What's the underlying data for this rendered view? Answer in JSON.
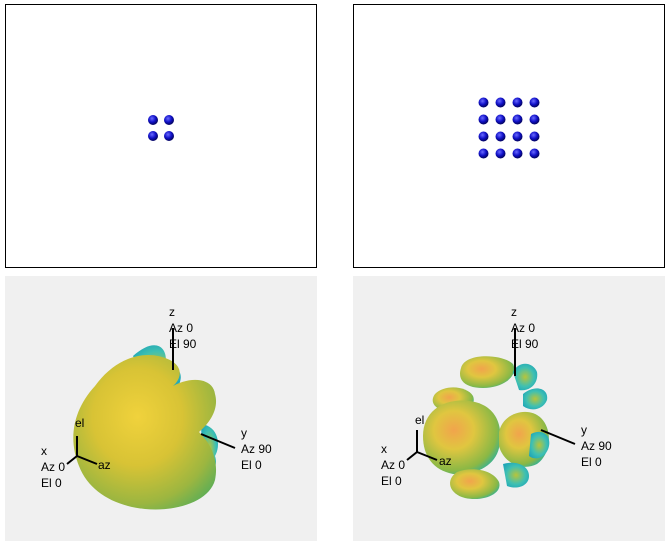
{
  "top_left": {
    "rows": 2,
    "cols": 2
  },
  "top_right": {
    "rows": 4,
    "cols": 4
  },
  "element_color": "#1010c8",
  "pattern_colors": {
    "background": "#f0f0f0",
    "yellow": "#e8d23a",
    "cyan": "#2ec3c3",
    "orange": "#e19a4a"
  },
  "pattern_left": {
    "z_axis": {
      "name": "z",
      "az": "Az 0",
      "el": "El 90"
    },
    "y_axis": {
      "name": "y",
      "az": "Az 90",
      "el": "El 0"
    },
    "x_axis": {
      "name": "x",
      "az": "Az 0",
      "el": "El 0"
    },
    "triad": {
      "el": "el",
      "az": "az"
    }
  },
  "pattern_right": {
    "z_axis": {
      "name": "z",
      "az": "Az 0",
      "el": "El 90"
    },
    "y_axis": {
      "name": "y",
      "az": "Az 90",
      "el": "El 0"
    },
    "x_axis": {
      "name": "x",
      "az": "Az 0",
      "el": "El 0"
    },
    "triad": {
      "el": "el",
      "az": "az"
    }
  }
}
